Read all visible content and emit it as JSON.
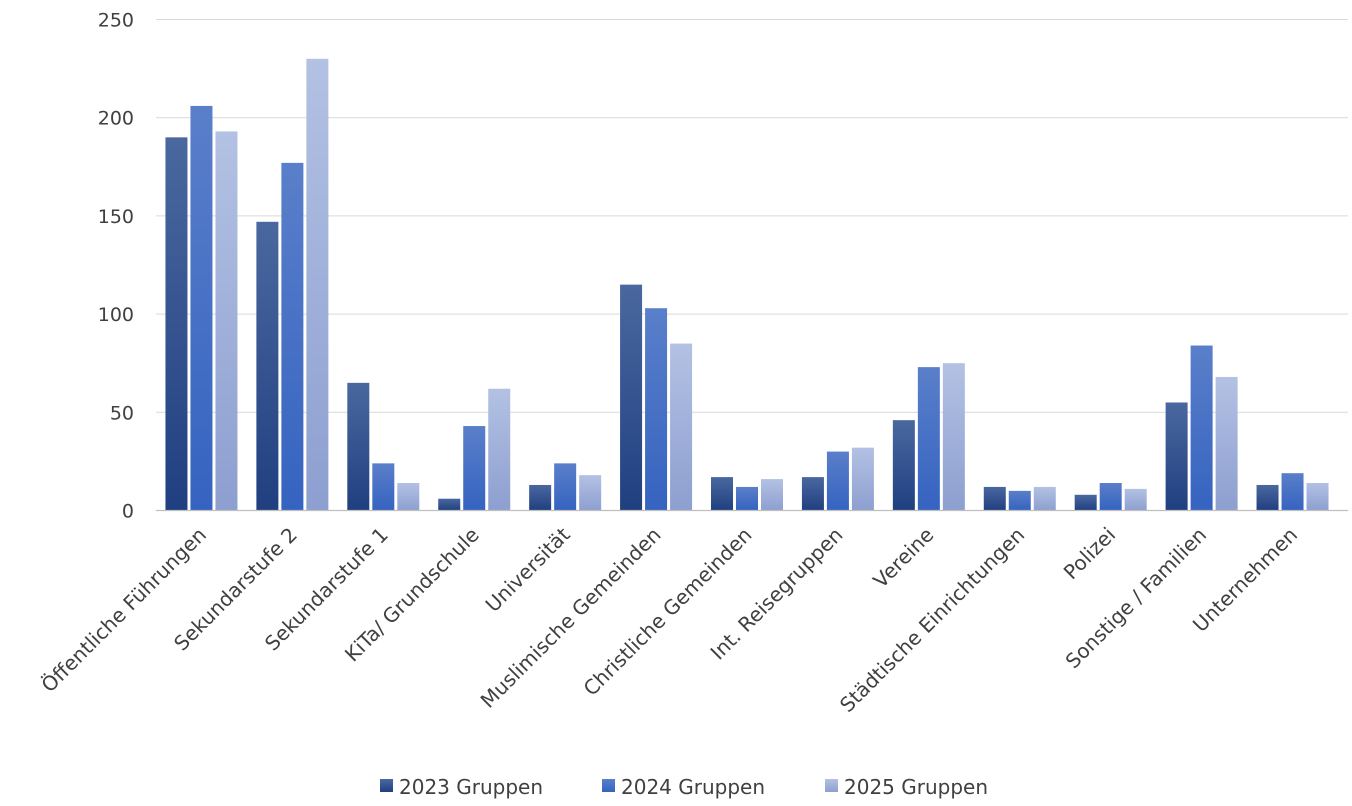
{
  "chart_data": {
    "type": "bar",
    "title": "",
    "xlabel": "",
    "ylabel": "",
    "ylim": [
      0,
      250
    ],
    "yticks": [
      0,
      50,
      100,
      150,
      200,
      250
    ],
    "grid": true,
    "legend_position": "bottom",
    "categories": [
      "Öffentliche Führungen",
      "Sekundarstufe 2",
      "Sekundarstufe 1",
      "KiTa/ Grundschule",
      "Universität",
      "Muslimische Gemeinden",
      "Christliche Gemeinden",
      "Int. Reisegruppen",
      "Vereine",
      "Städtische Einrichtungen",
      "Polizei",
      "Sonstige / Familien",
      "Unternehmen"
    ],
    "series": [
      {
        "name": "2023 Gruppen",
        "color": "#2e4f8f",
        "values": [
          190,
          147,
          65,
          6,
          13,
          115,
          17,
          17,
          46,
          12,
          8,
          55,
          13
        ]
      },
      {
        "name": "2024 Gruppen",
        "color": "#4472c4",
        "values": [
          206,
          177,
          24,
          43,
          24,
          103,
          12,
          30,
          73,
          10,
          14,
          84,
          19
        ]
      },
      {
        "name": "2025 Gruppen",
        "color": "#a5b4dc",
        "values": [
          193,
          230,
          14,
          62,
          18,
          85,
          16,
          32,
          75,
          12,
          11,
          68,
          14
        ]
      }
    ]
  }
}
